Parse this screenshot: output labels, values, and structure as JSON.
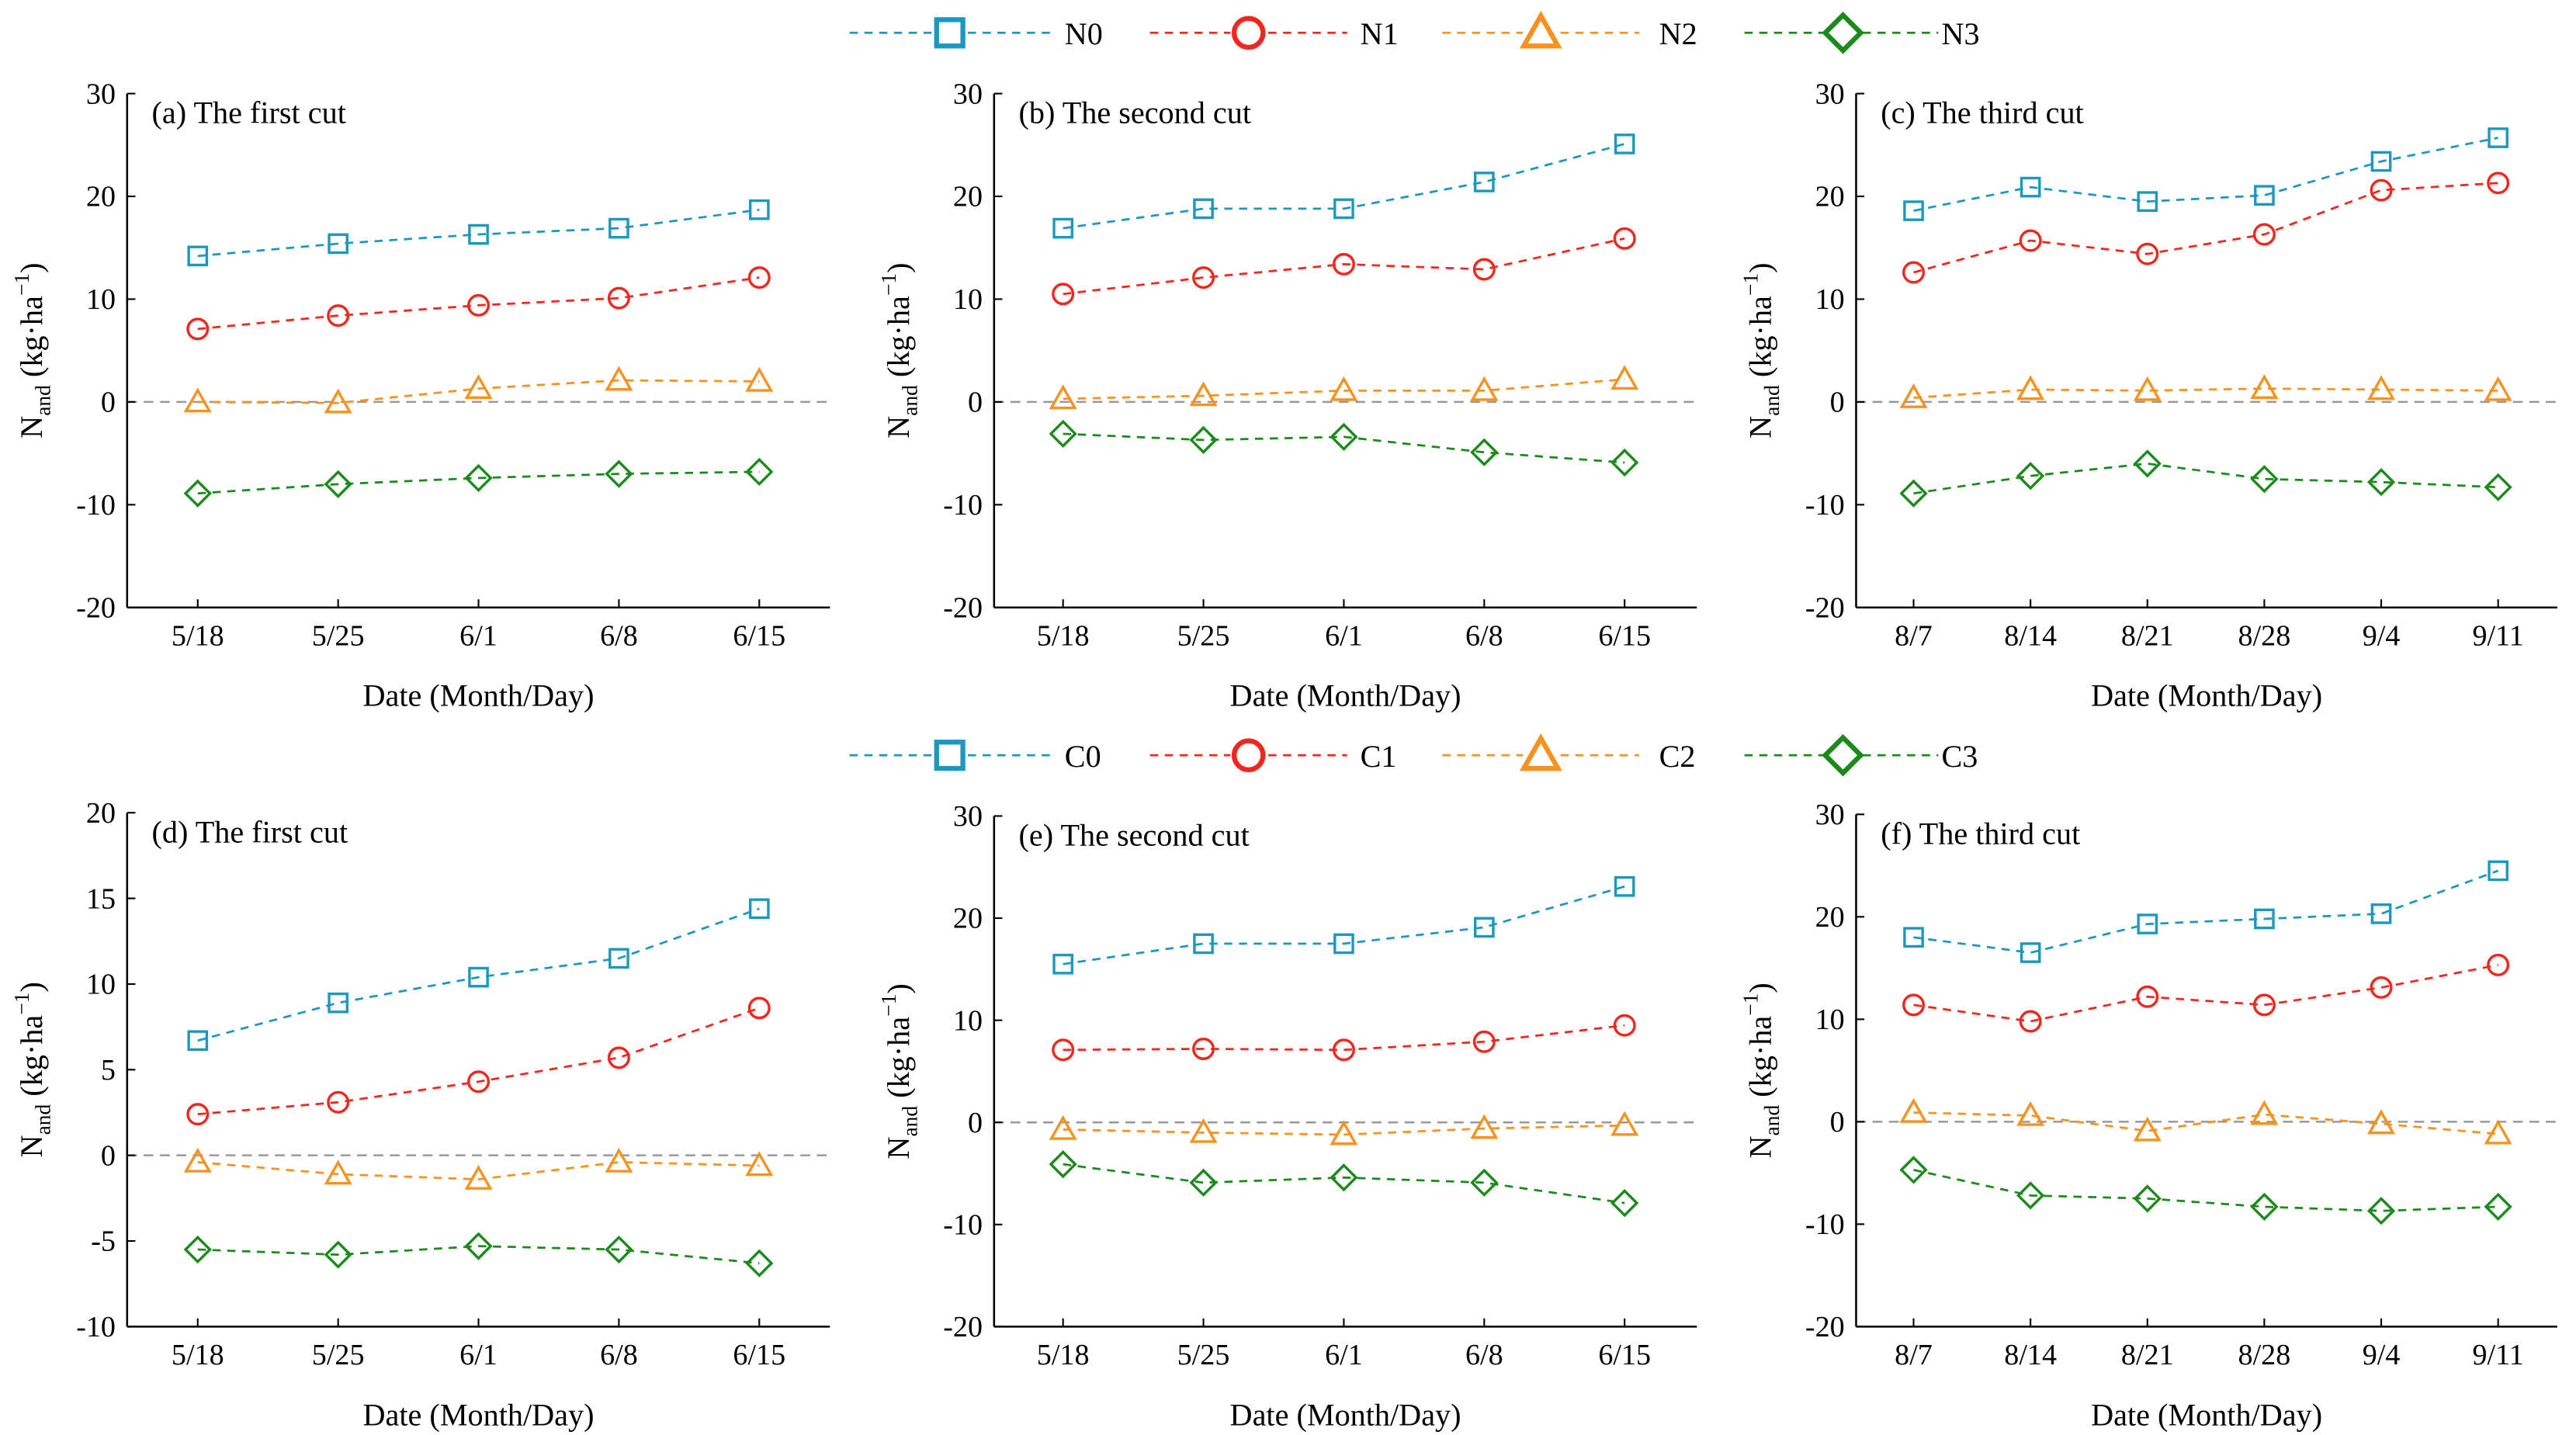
{
  "legends": [
    {
      "items": [
        "N0",
        "N1",
        "N2",
        "N3"
      ]
    },
    {
      "items": [
        "C0",
        "C1",
        "C2",
        "C3"
      ]
    }
  ],
  "series_colors": [
    "#1c98bf",
    "#f2261c",
    "#f7921e",
    "#1a8a1a"
  ],
  "series_markers": [
    "square",
    "circle",
    "triangle",
    "diamond"
  ],
  "ylabel": {
    "main": "N",
    "sub": "and",
    "unit": " (kg·ha",
    "sup": "−1",
    "close": ")"
  },
  "chart_data": [
    {
      "type": "line",
      "title": "(a)  The first cut",
      "xlabel": "Date (Month/Day)",
      "categories": [
        "5/18",
        "5/25",
        "6/1",
        "6/8",
        "6/15"
      ],
      "ylim": [
        -20,
        30
      ],
      "yticks": [
        -20,
        -10,
        0,
        10,
        20,
        30
      ],
      "series": [
        {
          "name": "N0",
          "values": [
            14.2,
            15.4,
            16.3,
            16.9,
            18.7
          ]
        },
        {
          "name": "N1",
          "values": [
            7.1,
            8.4,
            9.4,
            10.1,
            12.1
          ]
        },
        {
          "name": "N2",
          "values": [
            0.0,
            -0.1,
            1.3,
            2.1,
            2.0
          ]
        },
        {
          "name": "N3",
          "values": [
            -8.9,
            -8.0,
            -7.4,
            -7.0,
            -6.8
          ]
        }
      ]
    },
    {
      "type": "line",
      "title": "(b)  The second cut",
      "xlabel": "Date (Month/Day)",
      "categories": [
        "5/18",
        "5/25",
        "6/1",
        "6/8",
        "6/15"
      ],
      "ylim": [
        -20,
        30
      ],
      "yticks": [
        -20,
        -10,
        0,
        10,
        20,
        30
      ],
      "series": [
        {
          "name": "N0",
          "values": [
            16.9,
            18.8,
            18.8,
            21.4,
            25.1
          ]
        },
        {
          "name": "N1",
          "values": [
            10.5,
            12.1,
            13.4,
            12.9,
            15.9
          ]
        },
        {
          "name": "N2",
          "values": [
            0.3,
            0.6,
            1.1,
            1.1,
            2.2
          ]
        },
        {
          "name": "N3",
          "values": [
            -3.1,
            -3.7,
            -3.4,
            -4.9,
            -5.9
          ]
        }
      ]
    },
    {
      "type": "line",
      "title": "(c)  The third cut",
      "xlabel": "Date (Month/Day)",
      "categories": [
        "8/7",
        "8/14",
        "8/21",
        "8/28",
        "9/4",
        "9/11"
      ],
      "ylim": [
        -20,
        30
      ],
      "yticks": [
        -20,
        -10,
        0,
        10,
        20,
        30
      ],
      "series": [
        {
          "name": "N0",
          "values": [
            18.6,
            20.9,
            19.5,
            20.1,
            23.4,
            25.7
          ]
        },
        {
          "name": "N1",
          "values": [
            12.6,
            15.7,
            14.4,
            16.3,
            20.6,
            21.3
          ]
        },
        {
          "name": "N2",
          "values": [
            0.4,
            1.2,
            1.1,
            1.3,
            1.2,
            1.1
          ]
        },
        {
          "name": "N3",
          "values": [
            -8.9,
            -7.2,
            -6.0,
            -7.5,
            -7.8,
            -8.3
          ]
        }
      ]
    },
    {
      "type": "line",
      "title": "(d)  The first cut",
      "xlabel": "Date (Month/Day)",
      "categories": [
        "5/18",
        "5/25",
        "6/1",
        "6/8",
        "6/15"
      ],
      "ylim": [
        -10,
        20
      ],
      "yticks": [
        -10,
        -5,
        0,
        5,
        10,
        15,
        20
      ],
      "series": [
        {
          "name": "C0",
          "values": [
            6.7,
            8.9,
            10.4,
            11.5,
            14.4
          ]
        },
        {
          "name": "C1",
          "values": [
            2.4,
            3.1,
            4.3,
            5.7,
            8.6
          ]
        },
        {
          "name": "C2",
          "values": [
            -0.4,
            -1.1,
            -1.4,
            -0.4,
            -0.6
          ]
        },
        {
          "name": "C3",
          "values": [
            -5.5,
            -5.8,
            -5.3,
            -5.5,
            -6.3
          ]
        }
      ]
    },
    {
      "type": "line",
      "title": "(e)  The second cut",
      "xlabel": "Date (Month/Day)",
      "categories": [
        "5/18",
        "5/25",
        "6/1",
        "6/8",
        "6/15"
      ],
      "ylim": [
        -20,
        30
      ],
      "yticks": [
        -20,
        -10,
        0,
        10,
        20,
        30
      ],
      "series": [
        {
          "name": "C0",
          "values": [
            15.5,
            17.5,
            17.5,
            19.1,
            23.1
          ]
        },
        {
          "name": "C1",
          "values": [
            7.1,
            7.2,
            7.1,
            7.9,
            9.5
          ]
        },
        {
          "name": "C2",
          "values": [
            -0.7,
            -1.0,
            -1.2,
            -0.6,
            -0.3
          ]
        },
        {
          "name": "C3",
          "values": [
            -4.1,
            -5.9,
            -5.4,
            -5.9,
            -7.9
          ]
        }
      ]
    },
    {
      "type": "line",
      "title": "(f)  The third cut",
      "xlabel": "Date (Month/Day)",
      "categories": [
        "8/7",
        "8/14",
        "8/21",
        "8/28",
        "9/4",
        "9/11"
      ],
      "ylim": [
        -20,
        30
      ],
      "yticks": [
        -20,
        -10,
        0,
        10,
        20,
        30
      ],
      "series": [
        {
          "name": "C0",
          "values": [
            18.0,
            16.5,
            19.3,
            19.8,
            20.3,
            24.5
          ]
        },
        {
          "name": "C1",
          "values": [
            11.4,
            9.8,
            12.2,
            11.4,
            13.1,
            15.3
          ]
        },
        {
          "name": "C2",
          "values": [
            0.9,
            0.6,
            -0.9,
            0.7,
            -0.2,
            -1.2
          ]
        },
        {
          "name": "C3",
          "values": [
            -4.7,
            -7.2,
            -7.5,
            -8.3,
            -8.7,
            -8.3
          ]
        }
      ]
    }
  ]
}
